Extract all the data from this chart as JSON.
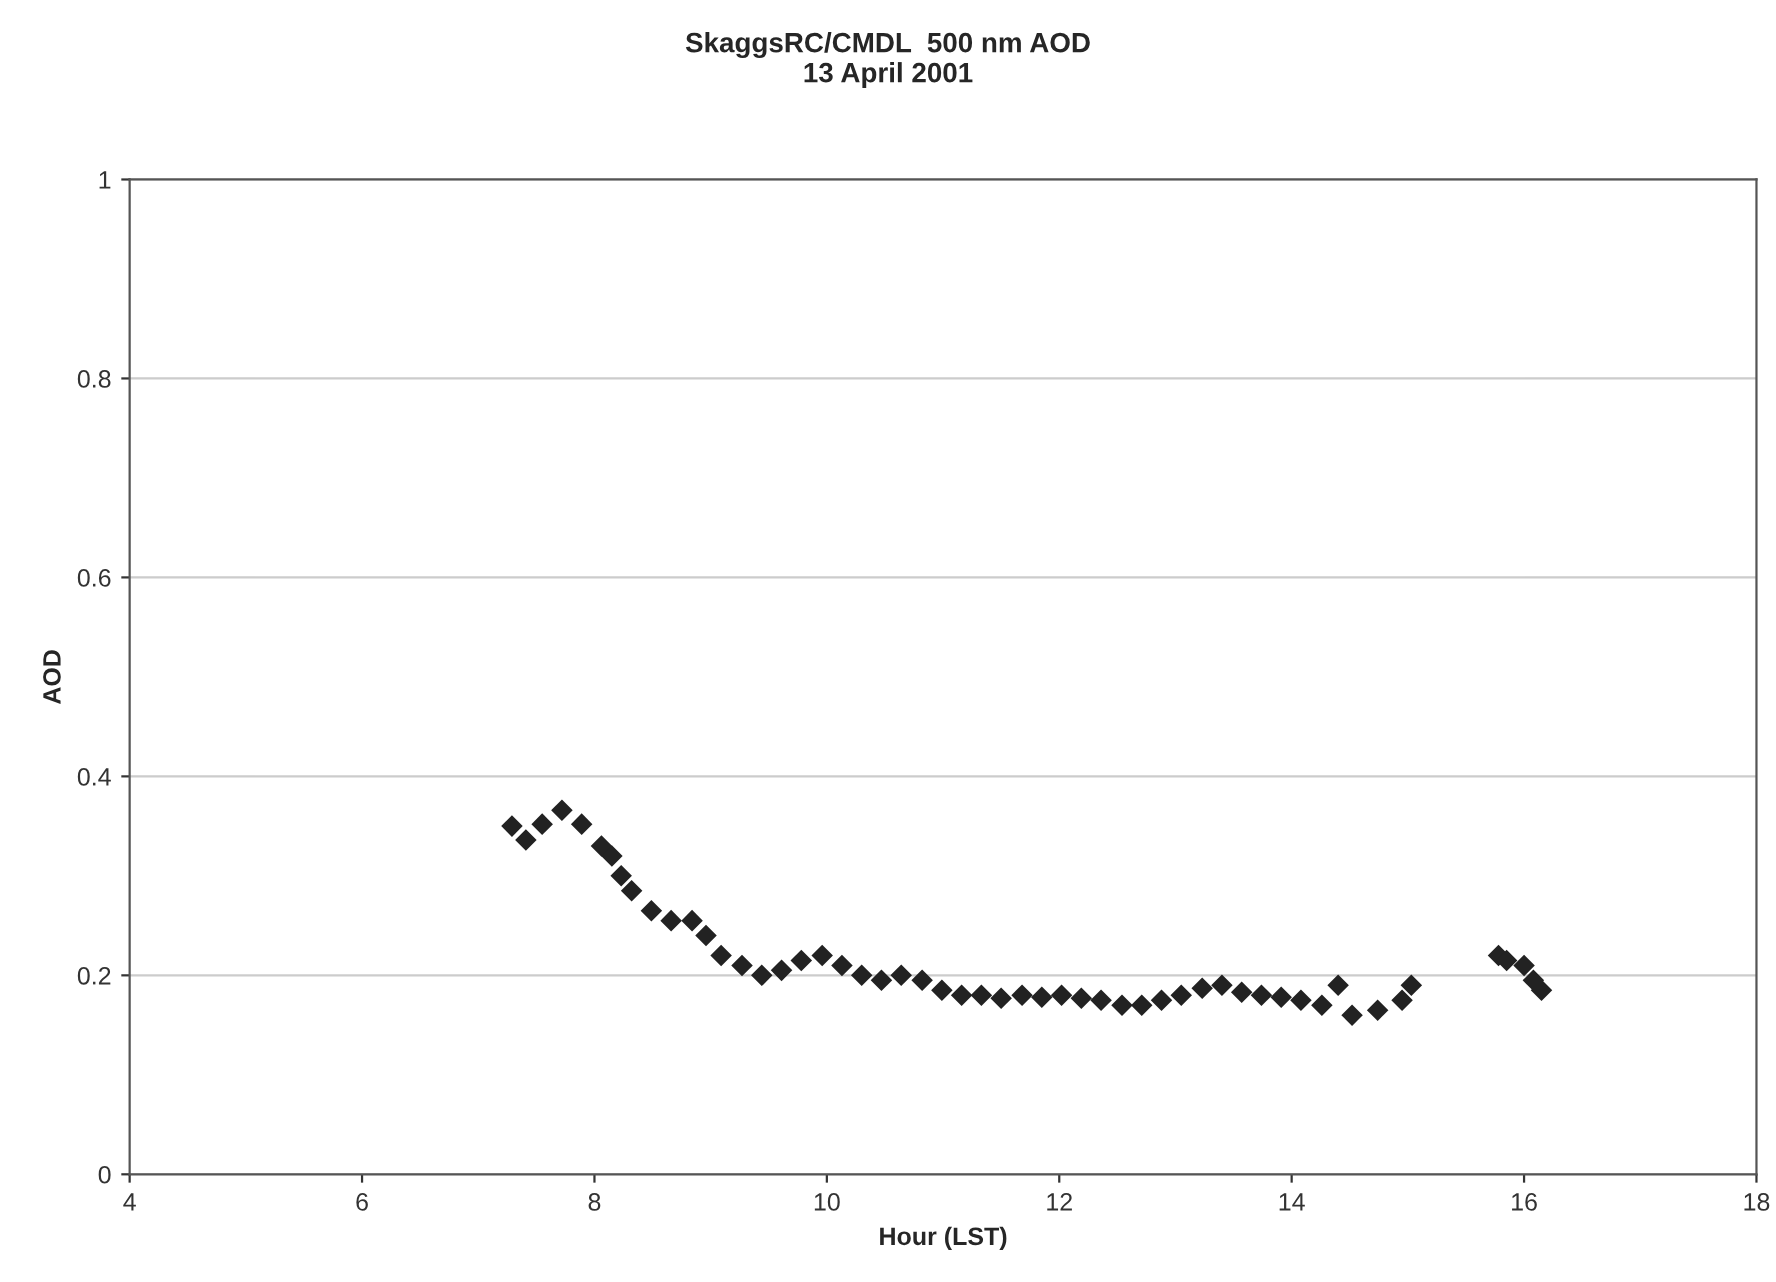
{
  "chart_data": {
    "type": "scatter",
    "title": "SkaggsRC/CMDL  500 nm AOD\n13 April 2001",
    "xlabel": "Hour (LST)",
    "ylabel": "AOD",
    "xlim": [
      4,
      18
    ],
    "xticks": [
      4,
      6,
      8,
      10,
      12,
      14,
      16,
      18
    ],
    "ylim": [
      0,
      1
    ],
    "yticks": [
      0,
      0.2,
      0.4,
      0.6,
      0.8,
      1
    ],
    "grid": "y",
    "marker": "diamond",
    "legend": false,
    "series": [
      {
        "color": "#222222",
        "x": [
          7.29,
          7.41,
          7.55,
          7.72,
          7.89,
          8.06,
          8.15,
          8.23,
          8.32,
          8.49,
          8.66,
          8.84,
          8.96,
          9.09,
          9.27,
          9.44,
          9.61,
          9.78,
          9.96,
          10.13,
          10.3,
          10.47,
          10.64,
          10.82,
          10.99,
          11.16,
          11.33,
          11.5,
          11.68,
          11.85,
          12.02,
          12.19,
          12.36,
          12.54,
          12.71,
          12.88,
          13.05,
          13.23,
          13.4,
          13.57,
          13.74,
          13.91,
          14.08,
          14.26,
          14.4,
          14.52,
          14.74,
          14.95,
          15.03,
          15.78,
          15.85,
          16.0,
          16.08,
          16.15
        ],
        "values": [
          0.35,
          0.336,
          0.352,
          0.366,
          0.352,
          0.33,
          0.32,
          0.3,
          0.285,
          0.265,
          0.255,
          0.255,
          0.24,
          0.22,
          0.21,
          0.2,
          0.205,
          0.215,
          0.22,
          0.21,
          0.2,
          0.195,
          0.2,
          0.195,
          0.185,
          0.18,
          0.18,
          0.177,
          0.18,
          0.178,
          0.18,
          0.177,
          0.175,
          0.17,
          0.17,
          0.175,
          0.18,
          0.187,
          0.19,
          0.183,
          0.18,
          0.178,
          0.175,
          0.17,
          0.19,
          0.16,
          0.165,
          0.175,
          0.19,
          0.22,
          0.215,
          0.21,
          0.195,
          0.185
        ]
      }
    ]
  }
}
